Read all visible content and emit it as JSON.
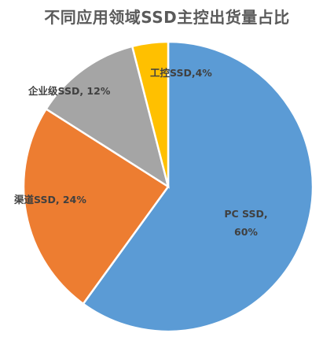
{
  "chart_data": {
    "type": "pie",
    "title": "不同应用领域SSD主控出货量占比",
    "categories": [
      "PC SSD",
      "渠道SSD",
      "企业级SSD",
      "工控SSD"
    ],
    "values": [
      60,
      24,
      12,
      4
    ],
    "unit": "%",
    "colors": [
      "#5B9BD5",
      "#ED7D31",
      "#A5A5A5",
      "#FFC000"
    ],
    "data_labels": [
      [
        "PC SSD,",
        "60%"
      ],
      [
        "渠道SSD, 24%"
      ],
      [
        "企业级SSD, 12%"
      ],
      [
        "工控SSD,4%"
      ]
    ],
    "start_angle_deg": 0,
    "direction": "clockwise",
    "legend": "none"
  }
}
